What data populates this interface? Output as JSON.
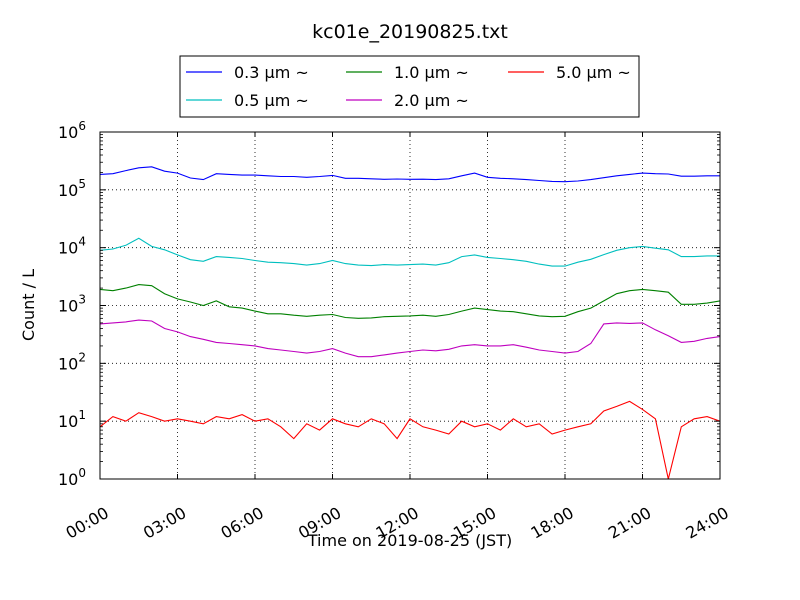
{
  "chart_data": {
    "type": "line",
    "title": "kc01e_20190825.txt",
    "xlabel": "Time on 2019-08-25 (JST)",
    "ylabel": "Count / L",
    "yscale": "log",
    "xlim": [
      0,
      24
    ],
    "ylim_exponents": [
      0,
      6
    ],
    "x_ticks": [
      "00:00",
      "03:00",
      "06:00",
      "09:00",
      "12:00",
      "15:00",
      "18:00",
      "21:00",
      "24:00"
    ],
    "y_ticks": [
      {
        "base": "10",
        "exp": "0"
      },
      {
        "base": "10",
        "exp": "1"
      },
      {
        "base": "10",
        "exp": "2"
      },
      {
        "base": "10",
        "exp": "3"
      },
      {
        "base": "10",
        "exp": "4"
      },
      {
        "base": "10",
        "exp": "5"
      },
      {
        "base": "10",
        "exp": "6"
      }
    ],
    "grid": true,
    "legend_position": "top-center",
    "x_hours": [
      0,
      0.5,
      1,
      1.5,
      2,
      2.5,
      3,
      3.5,
      4,
      4.5,
      5,
      5.5,
      6,
      6.5,
      7,
      7.5,
      8,
      8.5,
      9,
      9.5,
      10,
      10.5,
      11,
      11.5,
      12,
      12.5,
      13,
      13.5,
      14,
      14.5,
      15,
      15.5,
      16,
      16.5,
      17,
      17.5,
      18,
      18.5,
      19,
      19.5,
      20,
      20.5,
      21,
      21.5,
      22,
      22.5,
      23,
      23.5,
      24
    ],
    "series": [
      {
        "name": "0.3 μm ~",
        "color": "#0000ff",
        "values": [
          185000,
          190000,
          215000,
          240000,
          250000,
          210000,
          195000,
          160000,
          150000,
          190000,
          185000,
          180000,
          180000,
          175000,
          170000,
          170000,
          165000,
          170000,
          178000,
          158000,
          158000,
          155000,
          152000,
          154000,
          152000,
          153000,
          150000,
          155000,
          175000,
          195000,
          165000,
          158000,
          155000,
          150000,
          145000,
          140000,
          138000,
          142000,
          150000,
          162000,
          175000,
          185000,
          195000,
          190000,
          188000,
          172000,
          172000,
          175000,
          175000
        ]
      },
      {
        "name": "0.5 μm ~",
        "color": "#00bfbf",
        "values": [
          9000,
          9500,
          11000,
          14500,
          10500,
          9200,
          7500,
          6200,
          5800,
          7000,
          6800,
          6500,
          6000,
          5600,
          5500,
          5300,
          5000,
          5300,
          6000,
          5300,
          5000,
          4900,
          5100,
          5000,
          5100,
          5200,
          5000,
          5500,
          7000,
          7500,
          6800,
          6500,
          6200,
          5800,
          5200,
          4800,
          4800,
          5600,
          6300,
          7600,
          9000,
          10000,
          10500,
          9800,
          9200,
          7000,
          7000,
          7200,
          7200
        ]
      },
      {
        "name": "1.0 μm ~",
        "color": "#008000",
        "values": [
          1900,
          1800,
          2000,
          2300,
          2200,
          1600,
          1300,
          1150,
          1000,
          1200,
          950,
          900,
          800,
          720,
          720,
          680,
          650,
          680,
          700,
          620,
          600,
          610,
          640,
          650,
          660,
          680,
          650,
          700,
          800,
          900,
          850,
          800,
          780,
          720,
          660,
          640,
          650,
          780,
          900,
          1200,
          1600,
          1800,
          1900,
          1800,
          1700,
          1050,
          1050,
          1100,
          1200
        ]
      },
      {
        "name": "2.0 μm ~",
        "color": "#bf00bf",
        "values": [
          480,
          500,
          520,
          560,
          540,
          400,
          350,
          290,
          260,
          230,
          220,
          210,
          200,
          180,
          170,
          160,
          150,
          160,
          180,
          150,
          130,
          130,
          140,
          150,
          160,
          170,
          165,
          175,
          200,
          210,
          200,
          200,
          210,
          190,
          170,
          160,
          150,
          160,
          220,
          480,
          500,
          490,
          500,
          380,
          300,
          230,
          240,
          270,
          290
        ]
      },
      {
        "name": "5.0 μm ~",
        "color": "#ff0000",
        "values": [
          8,
          12,
          10,
          14,
          12,
          10,
          11,
          10,
          9,
          12,
          11,
          13,
          10,
          11,
          8,
          5,
          9,
          7,
          11,
          9,
          8,
          11,
          9,
          5,
          11,
          8,
          7,
          6,
          10,
          8,
          9,
          7,
          11,
          8,
          9,
          6,
          7,
          8,
          9,
          15,
          18,
          22,
          16,
          11,
          1,
          8,
          11,
          12,
          10
        ]
      }
    ]
  }
}
